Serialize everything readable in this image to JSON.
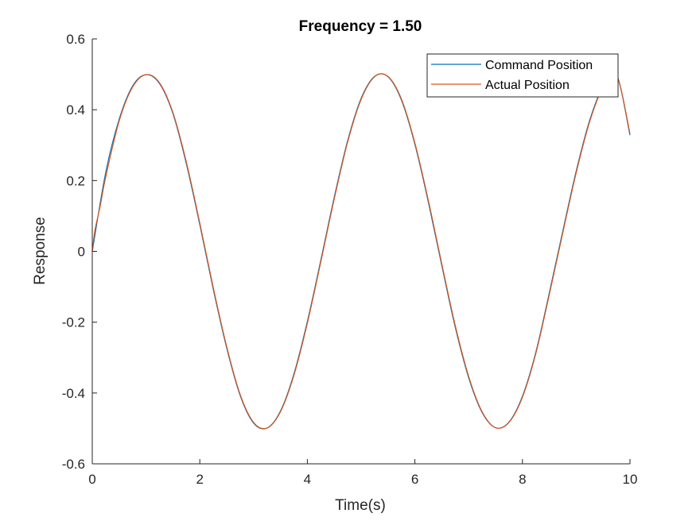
{
  "chart_data": {
    "type": "line",
    "title": "Frequency = 1.50",
    "xlabel": "Time(s)",
    "ylabel": "Response",
    "xlim": [
      0,
      10
    ],
    "ylim": [
      -0.6,
      0.6
    ],
    "xticks": [
      "0",
      "2",
      "4",
      "6",
      "8",
      "10"
    ],
    "yticks": [
      "-0.6",
      "-0.4",
      "-0.2",
      "0",
      "0.2",
      "0.4",
      "0.6"
    ],
    "grid": false,
    "legend_position": "top-right",
    "series": [
      {
        "name": "Command Position",
        "color": "#0072BD",
        "x": [
          0,
          0.25,
          0.5,
          0.75,
          1.0,
          1.25,
          1.5,
          1.75,
          2.0,
          2.25,
          2.5,
          2.75,
          3.0,
          3.25,
          3.5,
          3.75,
          4.0,
          4.25,
          4.5,
          4.75,
          5.0,
          5.25,
          5.5,
          5.75,
          6.0,
          6.25,
          6.5,
          6.75,
          7.0,
          7.25,
          7.5,
          7.75,
          8.0,
          8.25,
          8.5,
          8.75,
          9.0,
          9.25,
          9.5,
          9.75,
          10.0
        ],
        "y": [
          0,
          0.223,
          0.373,
          0.467,
          0.499,
          0.474,
          0.389,
          0.247,
          0.075,
          -0.107,
          -0.273,
          -0.407,
          -0.485,
          -0.499,
          -0.451,
          -0.346,
          -0.198,
          -0.025,
          0.153,
          0.313,
          0.432,
          0.494,
          0.493,
          0.427,
          0.302,
          0.139,
          -0.04,
          -0.214,
          -0.357,
          -0.455,
          -0.498,
          -0.482,
          -0.409,
          -0.284,
          -0.117,
          0.057,
          0.227,
          0.37,
          0.466,
          0.499,
          0.328
        ]
      },
      {
        "name": "Actual Position",
        "color": "#D95319",
        "x": [
          0,
          0.05,
          0.15,
          0.25,
          0.5,
          0.75,
          1.0,
          1.25,
          1.5,
          1.75,
          2.0,
          2.25,
          2.5,
          2.75,
          3.0,
          3.25,
          3.5,
          3.75,
          4.0,
          4.25,
          4.5,
          4.75,
          5.0,
          5.25,
          5.5,
          5.75,
          6.0,
          6.25,
          6.5,
          6.75,
          7.0,
          7.25,
          7.5,
          7.75,
          8.0,
          8.25,
          8.5,
          8.75,
          9.0,
          9.25,
          9.5,
          9.75,
          10.0
        ],
        "y": [
          0,
          0.06,
          0.13,
          0.21,
          0.368,
          0.464,
          0.499,
          0.476,
          0.392,
          0.252,
          0.08,
          -0.102,
          -0.269,
          -0.404,
          -0.483,
          -0.499,
          -0.453,
          -0.35,
          -0.203,
          -0.03,
          0.148,
          0.309,
          0.429,
          0.493,
          0.494,
          0.43,
          0.306,
          0.144,
          -0.035,
          -0.209,
          -0.353,
          -0.453,
          -0.498,
          -0.483,
          -0.412,
          -0.288,
          -0.122,
          0.052,
          0.222,
          0.366,
          0.464,
          0.499,
          0.333
        ]
      }
    ]
  }
}
